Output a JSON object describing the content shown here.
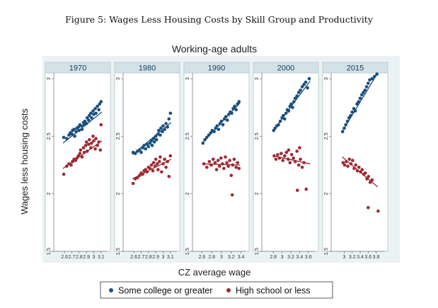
{
  "figure_caption": "Figure 5: Wages Less Housing Costs by Skill Group and Productivity",
  "colors": {
    "college": "#1a4f7e",
    "highschool": "#9e2a33",
    "panel_bg": "#eaf2f3",
    "header_bg": "#d3e2e6",
    "frame": "#bfcfd4"
  },
  "chart_data": {
    "type": "scatter",
    "title": "Working-age adults",
    "xlabel": "CZ average wage",
    "ylabel": "Wages less housing costs",
    "ylim": [
      1.5,
      3.05
    ],
    "yticks": [
      "1.5",
      "2",
      "2.5",
      "3"
    ],
    "legend": [
      {
        "name": "Some college or greater",
        "color_key": "college"
      },
      {
        "name": "High school or less",
        "color_key": "highschool"
      }
    ],
    "panels": [
      {
        "year": "1970",
        "xlim": [
          2.55,
          3.15
        ],
        "xticks": [
          "2.6",
          "2.7",
          "2.8",
          "2.9",
          "3",
          "3.1"
        ],
        "college_fit": [
          [
            2.58,
            2.44
          ],
          [
            3.11,
            2.71
          ]
        ],
        "highschool_fit": [
          [
            2.58,
            2.22
          ],
          [
            3.11,
            2.46
          ]
        ],
        "college": [
          [
            2.59,
            2.49
          ],
          [
            2.63,
            2.48
          ],
          [
            2.66,
            2.51
          ],
          [
            2.68,
            2.53
          ],
          [
            2.7,
            2.52
          ],
          [
            2.71,
            2.55
          ],
          [
            2.73,
            2.56
          ],
          [
            2.74,
            2.5
          ],
          [
            2.76,
            2.54
          ],
          [
            2.77,
            2.57
          ],
          [
            2.79,
            2.58
          ],
          [
            2.8,
            2.55
          ],
          [
            2.81,
            2.6
          ],
          [
            2.83,
            2.59
          ],
          [
            2.84,
            2.56
          ],
          [
            2.86,
            2.62
          ],
          [
            2.87,
            2.6
          ],
          [
            2.88,
            2.63
          ],
          [
            2.9,
            2.61
          ],
          [
            2.91,
            2.66
          ],
          [
            2.93,
            2.64
          ],
          [
            2.94,
            2.68
          ],
          [
            2.96,
            2.7
          ],
          [
            2.97,
            2.66
          ],
          [
            2.99,
            2.72
          ],
          [
            3.0,
            2.69
          ],
          [
            3.02,
            2.74
          ],
          [
            3.03,
            2.7
          ],
          [
            3.05,
            2.76
          ],
          [
            3.07,
            2.73
          ],
          [
            3.08,
            2.78
          ],
          [
            3.1,
            2.8
          ]
        ],
        "highschool": [
          [
            2.59,
            2.17
          ],
          [
            2.63,
            2.24
          ],
          [
            2.66,
            2.26
          ],
          [
            2.69,
            2.25
          ],
          [
            2.71,
            2.28
          ],
          [
            2.73,
            2.3
          ],
          [
            2.75,
            2.29
          ],
          [
            2.77,
            2.31
          ],
          [
            2.79,
            2.33
          ],
          [
            2.81,
            2.35
          ],
          [
            2.82,
            2.38
          ],
          [
            2.84,
            2.32
          ],
          [
            2.86,
            2.4
          ],
          [
            2.87,
            2.36
          ],
          [
            2.89,
            2.42
          ],
          [
            2.9,
            2.45
          ],
          [
            2.91,
            2.37
          ],
          [
            2.93,
            2.43
          ],
          [
            2.94,
            2.47
          ],
          [
            2.96,
            2.4
          ],
          [
            2.97,
            2.44
          ],
          [
            2.99,
            2.5
          ],
          [
            3.0,
            2.46
          ],
          [
            3.02,
            2.39
          ],
          [
            3.03,
            2.48
          ],
          [
            3.05,
            2.42
          ],
          [
            3.07,
            2.45
          ],
          [
            3.09,
            2.38
          ],
          [
            3.1,
            2.6
          ]
        ]
      },
      {
        "year": "1980",
        "xlim": [
          2.55,
          3.15
        ],
        "xticks": [
          "2.6",
          "2.7",
          "2.8",
          "2.9",
          "3",
          "3.1"
        ],
        "college_fit": [
          [
            2.58,
            2.34
          ],
          [
            3.11,
            2.62
          ]
        ],
        "highschool_fit": [
          [
            2.58,
            2.13
          ],
          [
            3.11,
            2.3
          ]
        ],
        "college": [
          [
            2.59,
            2.36
          ],
          [
            2.62,
            2.35
          ],
          [
            2.65,
            2.37
          ],
          [
            2.68,
            2.38
          ],
          [
            2.7,
            2.36
          ],
          [
            2.72,
            2.4
          ],
          [
            2.74,
            2.42
          ],
          [
            2.76,
            2.39
          ],
          [
            2.78,
            2.43
          ],
          [
            2.8,
            2.41
          ],
          [
            2.82,
            2.44
          ],
          [
            2.84,
            2.46
          ],
          [
            2.85,
            2.42
          ],
          [
            2.87,
            2.48
          ],
          [
            2.88,
            2.45
          ],
          [
            2.9,
            2.5
          ],
          [
            2.91,
            2.47
          ],
          [
            2.93,
            2.52
          ],
          [
            2.94,
            2.55
          ],
          [
            2.96,
            2.51
          ],
          [
            2.97,
            2.57
          ],
          [
            2.99,
            2.54
          ],
          [
            3.0,
            2.59
          ],
          [
            3.02,
            2.56
          ],
          [
            3.04,
            2.61
          ],
          [
            3.06,
            2.58
          ],
          [
            3.08,
            2.65
          ],
          [
            3.1,
            2.7
          ]
        ],
        "highschool": [
          [
            2.59,
            2.09
          ],
          [
            2.62,
            2.13
          ],
          [
            2.65,
            2.14
          ],
          [
            2.68,
            2.16
          ],
          [
            2.7,
            2.18
          ],
          [
            2.72,
            2.17
          ],
          [
            2.74,
            2.2
          ],
          [
            2.76,
            2.21
          ],
          [
            2.78,
            2.19
          ],
          [
            2.8,
            2.23
          ],
          [
            2.82,
            2.22
          ],
          [
            2.84,
            2.25
          ],
          [
            2.86,
            2.2
          ],
          [
            2.87,
            2.27
          ],
          [
            2.89,
            2.24
          ],
          [
            2.9,
            2.3
          ],
          [
            2.92,
            2.26
          ],
          [
            2.93,
            2.21
          ],
          [
            2.95,
            2.28
          ],
          [
            2.96,
            2.32
          ],
          [
            2.98,
            2.19
          ],
          [
            3.0,
            2.26
          ],
          [
            3.02,
            2.3
          ],
          [
            3.04,
            2.23
          ],
          [
            3.06,
            2.28
          ],
          [
            3.08,
            2.15
          ],
          [
            3.1,
            2.33
          ]
        ]
      },
      {
        "year": "1990",
        "xlim": [
          2.55,
          3.45
        ],
        "xticks": [
          "2.6",
          "2.8",
          "3",
          "3.2",
          "3.4"
        ],
        "college_fit": [
          [
            2.6,
            2.44
          ],
          [
            3.38,
            2.79
          ]
        ],
        "highschool_fit": [
          [
            2.6,
            2.26
          ],
          [
            3.38,
            2.25
          ]
        ],
        "college": [
          [
            2.62,
            2.44
          ],
          [
            2.66,
            2.47
          ],
          [
            2.7,
            2.49
          ],
          [
            2.74,
            2.51
          ],
          [
            2.78,
            2.53
          ],
          [
            2.81,
            2.55
          ],
          [
            2.85,
            2.54
          ],
          [
            2.88,
            2.57
          ],
          [
            2.91,
            2.59
          ],
          [
            2.94,
            2.56
          ],
          [
            2.97,
            2.61
          ],
          [
            3.0,
            2.63
          ],
          [
            3.03,
            2.6
          ],
          [
            3.06,
            2.65
          ],
          [
            3.09,
            2.67
          ],
          [
            3.12,
            2.64
          ],
          [
            3.15,
            2.69
          ],
          [
            3.18,
            2.71
          ],
          [
            3.21,
            2.7
          ],
          [
            3.24,
            2.74
          ],
          [
            3.27,
            2.76
          ],
          [
            3.3,
            2.73
          ],
          [
            3.33,
            2.78
          ],
          [
            3.36,
            2.8
          ]
        ],
        "highschool": [
          [
            2.64,
            2.26
          ],
          [
            2.7,
            2.23
          ],
          [
            2.75,
            2.28
          ],
          [
            2.79,
            2.25
          ],
          [
            2.83,
            2.3
          ],
          [
            2.87,
            2.27
          ],
          [
            2.9,
            2.21
          ],
          [
            2.93,
            2.29
          ],
          [
            2.96,
            2.24
          ],
          [
            2.99,
            2.31
          ],
          [
            3.02,
            2.26
          ],
          [
            3.05,
            2.22
          ],
          [
            3.08,
            2.32
          ],
          [
            3.11,
            2.27
          ],
          [
            3.14,
            2.24
          ],
          [
            3.17,
            2.29
          ],
          [
            3.2,
            2.16
          ],
          [
            3.23,
            2.25
          ],
          [
            3.26,
            2.3
          ],
          [
            3.3,
            2.23
          ],
          [
            3.33,
            2.27
          ],
          [
            3.36,
            2.22
          ],
          [
            3.22,
            1.99
          ]
        ]
      },
      {
        "year": "2000",
        "xlim": [
          2.7,
          3.7
        ],
        "xticks": [
          "2.8",
          "3",
          "3.2",
          "3.4",
          "3.6"
        ],
        "college_fit": [
          [
            2.8,
            2.55
          ],
          [
            3.64,
            2.98
          ]
        ],
        "highschool_fit": [
          [
            2.8,
            2.33
          ],
          [
            3.64,
            2.26
          ]
        ],
        "college": [
          [
            2.81,
            2.55
          ],
          [
            2.84,
            2.57
          ],
          [
            2.88,
            2.59
          ],
          [
            2.92,
            2.6
          ],
          [
            2.96,
            2.63
          ],
          [
            3.0,
            2.66
          ],
          [
            3.03,
            2.68
          ],
          [
            3.06,
            2.65
          ],
          [
            3.09,
            2.7
          ],
          [
            3.12,
            2.73
          ],
          [
            3.15,
            2.72
          ],
          [
            3.18,
            2.76
          ],
          [
            3.21,
            2.78
          ],
          [
            3.24,
            2.75
          ],
          [
            3.27,
            2.8
          ],
          [
            3.3,
            2.83
          ],
          [
            3.34,
            2.85
          ],
          [
            3.38,
            2.88
          ],
          [
            3.42,
            2.9
          ],
          [
            3.46,
            2.93
          ],
          [
            3.5,
            2.95
          ],
          [
            3.54,
            2.97
          ],
          [
            3.58,
            2.92
          ],
          [
            3.62,
            3.0
          ]
        ],
        "highschool": [
          [
            2.82,
            2.33
          ],
          [
            2.86,
            2.3
          ],
          [
            2.9,
            2.34
          ],
          [
            2.94,
            2.31
          ],
          [
            2.98,
            2.35
          ],
          [
            3.02,
            2.29
          ],
          [
            3.06,
            2.33
          ],
          [
            3.1,
            2.36
          ],
          [
            3.14,
            2.3
          ],
          [
            3.18,
            2.27
          ],
          [
            3.22,
            2.34
          ],
          [
            3.26,
            2.31
          ],
          [
            3.3,
            2.28
          ],
          [
            3.34,
            2.37
          ],
          [
            3.38,
            2.25
          ],
          [
            3.42,
            2.3
          ],
          [
            3.46,
            2.23
          ],
          [
            3.5,
            2.27
          ],
          [
            3.35,
            2.03
          ],
          [
            3.55,
            2.04
          ],
          [
            3.15,
            2.38
          ],
          [
            3.4,
            2.4
          ]
        ]
      },
      {
        "year": "2015",
        "xlim": [
          2.85,
          3.95
        ],
        "xticks": [
          "3",
          "3.2",
          "3.4",
          "3.6",
          "3.8"
        ],
        "college_fit": [
          [
            2.95,
            2.54
          ],
          [
            3.84,
            3.05
          ]
        ],
        "highschool_fit": [
          [
            2.95,
            2.32
          ],
          [
            3.84,
            2.06
          ]
        ],
        "college": [
          [
            2.96,
            2.54
          ],
          [
            3.0,
            2.57
          ],
          [
            3.04,
            2.6
          ],
          [
            3.08,
            2.63
          ],
          [
            3.12,
            2.66
          ],
          [
            3.16,
            2.68
          ],
          [
            3.2,
            2.71
          ],
          [
            3.24,
            2.74
          ],
          [
            3.28,
            2.72
          ],
          [
            3.32,
            2.78
          ],
          [
            3.36,
            2.8
          ],
          [
            3.4,
            2.83
          ],
          [
            3.44,
            2.86
          ],
          [
            3.48,
            2.88
          ],
          [
            3.52,
            2.9
          ],
          [
            3.56,
            2.93
          ],
          [
            3.6,
            2.96
          ],
          [
            3.64,
            2.99
          ],
          [
            3.7,
            3.0
          ],
          [
            3.76,
            3.02
          ],
          [
            3.82,
            3.04
          ]
        ],
        "highschool": [
          [
            2.97,
            2.27
          ],
          [
            3.01,
            2.25
          ],
          [
            3.05,
            2.28
          ],
          [
            3.09,
            2.24
          ],
          [
            3.13,
            2.3
          ],
          [
            3.17,
            2.26
          ],
          [
            3.21,
            2.29
          ],
          [
            3.25,
            2.22
          ],
          [
            3.29,
            2.25
          ],
          [
            3.33,
            2.2
          ],
          [
            3.37,
            2.23
          ],
          [
            3.41,
            2.19
          ],
          [
            3.45,
            2.21
          ],
          [
            3.49,
            2.17
          ],
          [
            3.53,
            2.18
          ],
          [
            3.57,
            2.13
          ],
          [
            3.61,
            2.15
          ],
          [
            3.65,
            2.1
          ],
          [
            3.7,
            2.12
          ],
          [
            3.6,
            1.88
          ],
          [
            3.85,
            1.85
          ]
        ]
      }
    ]
  }
}
